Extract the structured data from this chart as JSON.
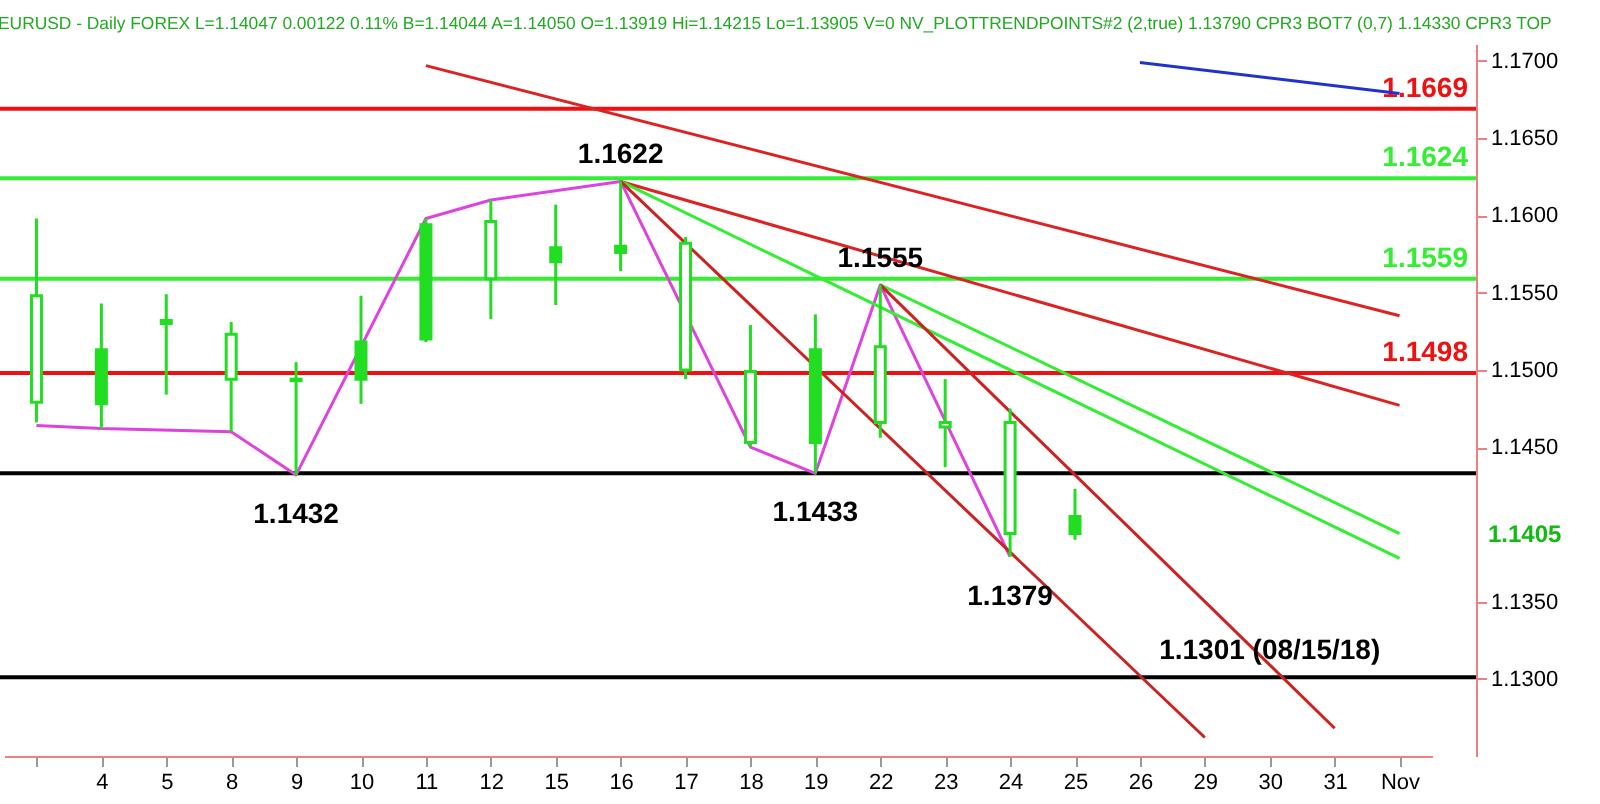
{
  "chart_data": {
    "type": "candlestick",
    "title": "EURUSD - Daily FOREX L=1.14047 0.00122 0.11% B=1.14044 A=1.14050 O=1.13919 Hi=1.14215 Lo=1.13905 V=0 NV_PLOTTRENDPOINTS#2 (2,true) 1.13790 CPR3 BOT7 (0,7) 1.14330 CPR3 TOP",
    "categories": [
      null,
      "4",
      "5",
      "8",
      "9",
      "10",
      "11",
      "12",
      "15",
      "16",
      "17",
      "18",
      "19",
      "22",
      "23",
      "24",
      "25",
      "26",
      "29",
      "30",
      "31",
      "Nov"
    ],
    "color": "#22dd22",
    "ohlc": [
      [
        1.1548,
        1.1598,
        1.1466,
        1.1479
      ],
      [
        1.1478,
        1.1543,
        1.1462,
        1.1513
      ],
      [
        1.153,
        1.1549,
        1.1484,
        1.1532
      ],
      [
        1.1523,
        1.1531,
        1.146,
        1.1494
      ],
      [
        1.1494,
        1.1505,
        1.1432,
        1.1493
      ],
      [
        1.1494,
        1.1548,
        1.1478,
        1.1518
      ],
      [
        1.152,
        1.1598,
        1.1518,
        1.1594
      ],
      [
        1.1596,
        1.161,
        1.1533,
        1.1559
      ],
      [
        1.157,
        1.1607,
        1.1542,
        1.1579
      ],
      [
        1.1576,
        1.1622,
        1.1564,
        1.158
      ],
      [
        1.1582,
        1.1586,
        1.1494,
        1.15
      ],
      [
        1.1499,
        1.1529,
        1.145,
        1.1453
      ],
      [
        1.1453,
        1.1536,
        1.1433,
        1.1513
      ],
      [
        1.1515,
        1.1555,
        1.1456,
        1.1466
      ],
      [
        1.1466,
        1.1494,
        1.1437,
        1.1463
      ],
      [
        1.1466,
        1.1475,
        1.1379,
        1.1394
      ],
      [
        1.1394,
        1.1423,
        1.139,
        1.1405
      ],
      null,
      null,
      null,
      null,
      null
    ],
    "series": [
      {
        "type": "line",
        "color": "#dd44dd",
        "values": [
          1.1464,
          1.1462,
          null,
          1.146,
          1.1432,
          null,
          1.1598,
          1.161,
          null,
          1.1622,
          null,
          1.145,
          1.1433,
          1.1555,
          null,
          1.1379,
          null,
          null,
          null,
          null,
          null,
          null
        ]
      },
      {
        "type": "line",
        "color": "#dd2222",
        "values": [
          null,
          null,
          null,
          null,
          null,
          null,
          1.1697,
          null,
          null,
          null,
          null,
          null,
          null,
          null,
          null,
          null,
          null,
          null,
          null,
          null,
          null,
          1.1535
        ]
      },
      {
        "type": "line",
        "color": "#dd2222",
        "values": [
          null,
          null,
          null,
          null,
          null,
          null,
          null,
          null,
          null,
          1.1622,
          null,
          null,
          null,
          null,
          null,
          null,
          null,
          null,
          null,
          null,
          null,
          1.1477
        ]
      },
      {
        "type": "line",
        "color": "#33ee33",
        "values": [
          null,
          null,
          null,
          null,
          null,
          null,
          null,
          null,
          null,
          1.1622,
          null,
          null,
          null,
          null,
          null,
          null,
          null,
          null,
          null,
          null,
          null,
          1.1378
        ]
      },
      {
        "type": "line",
        "color": "#cc2222",
        "values": [
          null,
          null,
          null,
          null,
          null,
          null,
          null,
          null,
          null,
          1.1622,
          null,
          null,
          null,
          null,
          null,
          null,
          null,
          null,
          1.1262,
          null,
          null,
          null
        ]
      },
      {
        "type": "line",
        "color": "#33ee33",
        "values": [
          null,
          null,
          null,
          null,
          null,
          null,
          null,
          null,
          null,
          null,
          null,
          null,
          null,
          1.1555,
          null,
          null,
          null,
          null,
          null,
          null,
          null,
          1.1394
        ]
      },
      {
        "type": "line",
        "color": "#cc2222",
        "values": [
          null,
          null,
          null,
          null,
          null,
          null,
          null,
          null,
          null,
          null,
          null,
          null,
          null,
          1.1555,
          null,
          null,
          null,
          null,
          null,
          null,
          1.1268,
          null
        ]
      },
      {
        "type": "line",
        "color": "#2233cc",
        "values": [
          null,
          null,
          null,
          null,
          null,
          null,
          null,
          null,
          null,
          null,
          null,
          null,
          null,
          null,
          null,
          null,
          null,
          1.1699,
          null,
          null,
          null,
          1.1679
        ]
      }
    ],
    "ref_lines": [
      {
        "axis": "y",
        "value": 1.1669,
        "label": "1.1669",
        "color": "#ee1111"
      },
      {
        "axis": "y",
        "value": 1.1624,
        "label": "1.1624",
        "color": "#33ee33"
      },
      {
        "axis": "y",
        "value": 1.1559,
        "label": "1.1559",
        "color": "#33ee33"
      },
      {
        "axis": "y",
        "value": 1.1498,
        "label": "1.1498",
        "color": "#ee1111"
      },
      {
        "axis": "y",
        "value": 1.1433,
        "label": null,
        "color": "#000000"
      },
      {
        "axis": "y",
        "value": 1.1301,
        "label": null,
        "color": "#000000"
      }
    ],
    "annotations": [
      {
        "text": "1.1432",
        "x": "9",
        "y": 1.1432
      },
      {
        "text": "1.1622",
        "x": "16",
        "y": 1.1622
      },
      {
        "text": "1.1433",
        "x": "19",
        "y": 1.1433
      },
      {
        "text": "1.1555",
        "x": "22",
        "y": 1.1555
      },
      {
        "text": "1.1379",
        "x": "24",
        "y": 1.1379
      },
      {
        "text": "1.1301 (08/15/18)",
        "x": "30",
        "y": 1.1301
      },
      "1.1405"
    ],
    "ylim": [
      1.125,
      1.1711
    ],
    "yticks": [
      {
        "value": 1.13,
        "label": "1.1300"
      },
      {
        "value": 1.135,
        "label": "1.1350"
      },
      {
        "value": 1.145,
        "label": "1.1450"
      },
      {
        "value": 1.15,
        "label": "1.1500"
      },
      {
        "value": 1.155,
        "label": "1.1550"
      },
      {
        "value": 1.16,
        "label": "1.1600"
      },
      {
        "value": 1.165,
        "label": "1.1650"
      },
      {
        "value": 1.17,
        "label": "1.1700"
      }
    ]
  }
}
